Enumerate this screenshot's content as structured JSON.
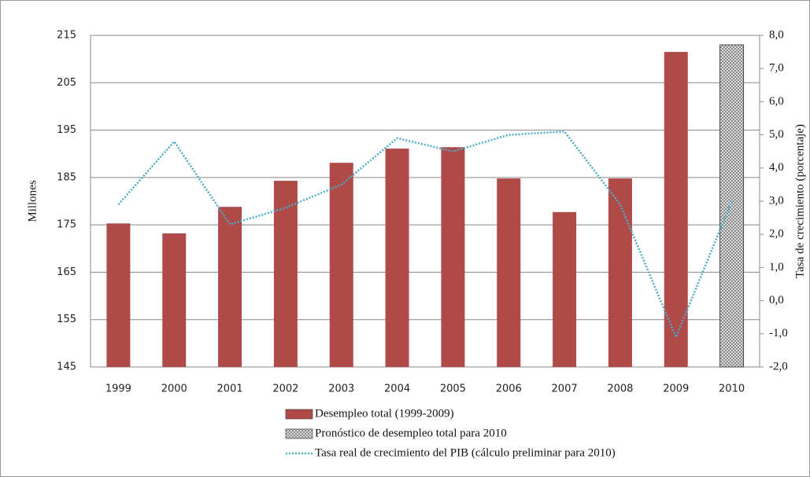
{
  "chart_data": {
    "type": "bar-line",
    "y_label": "Millones",
    "y2_label": "Tasa de crecimiento (porcentaje)",
    "categories": [
      "1999",
      "2000",
      "2001",
      "2002",
      "2003",
      "2004",
      "2005",
      "2006",
      "2007",
      "2008",
      "2009",
      "2010"
    ],
    "series": [
      {
        "name": "Desempleo total (1999-2009)",
        "color": "#b04a48",
        "kind": "bar",
        "values": [
          175.3,
          173.2,
          178.8,
          184.3,
          188.1,
          191.1,
          191.4,
          184.8,
          177.7,
          184.8,
          211.5,
          null
        ]
      },
      {
        "name": "Pronóstico de desempleo total para 2010",
        "color": "#808080",
        "kind": "hatched-bar",
        "values": [
          null,
          null,
          null,
          null,
          null,
          null,
          null,
          null,
          null,
          null,
          null,
          213
        ]
      },
      {
        "name": "Tasa real de crecimiento del PIB (cálculo preliminar para 2010)",
        "color": "#4bacc6",
        "kind": "dotted-line",
        "axis": "y2",
        "values": [
          2.9,
          4.8,
          2.3,
          2.8,
          3.5,
          4.9,
          4.5,
          5.0,
          5.1,
          2.9,
          -1.1,
          3.0
        ]
      }
    ],
    "ylim": [
      145,
      215
    ],
    "yticks": [
      145,
      155,
      165,
      175,
      185,
      195,
      205,
      215
    ],
    "y2lim": [
      -2,
      8
    ],
    "y2ticks": [
      {
        "value": -2,
        "label": "-2,0"
      },
      {
        "value": -1,
        "label": "-1,0"
      },
      {
        "value": 0,
        "label": "0,0"
      },
      {
        "value": 1,
        "label": "1,0"
      },
      {
        "value": 2,
        "label": "2,0"
      },
      {
        "value": 3,
        "label": "3,0"
      },
      {
        "value": 4,
        "label": "4,0"
      },
      {
        "value": 5,
        "label": "5,0"
      },
      {
        "value": 6,
        "label": "6,0"
      },
      {
        "value": 7,
        "label": "7,0"
      },
      {
        "value": 8,
        "label": "8,0"
      }
    ],
    "grid": true,
    "legend": "bottom"
  }
}
